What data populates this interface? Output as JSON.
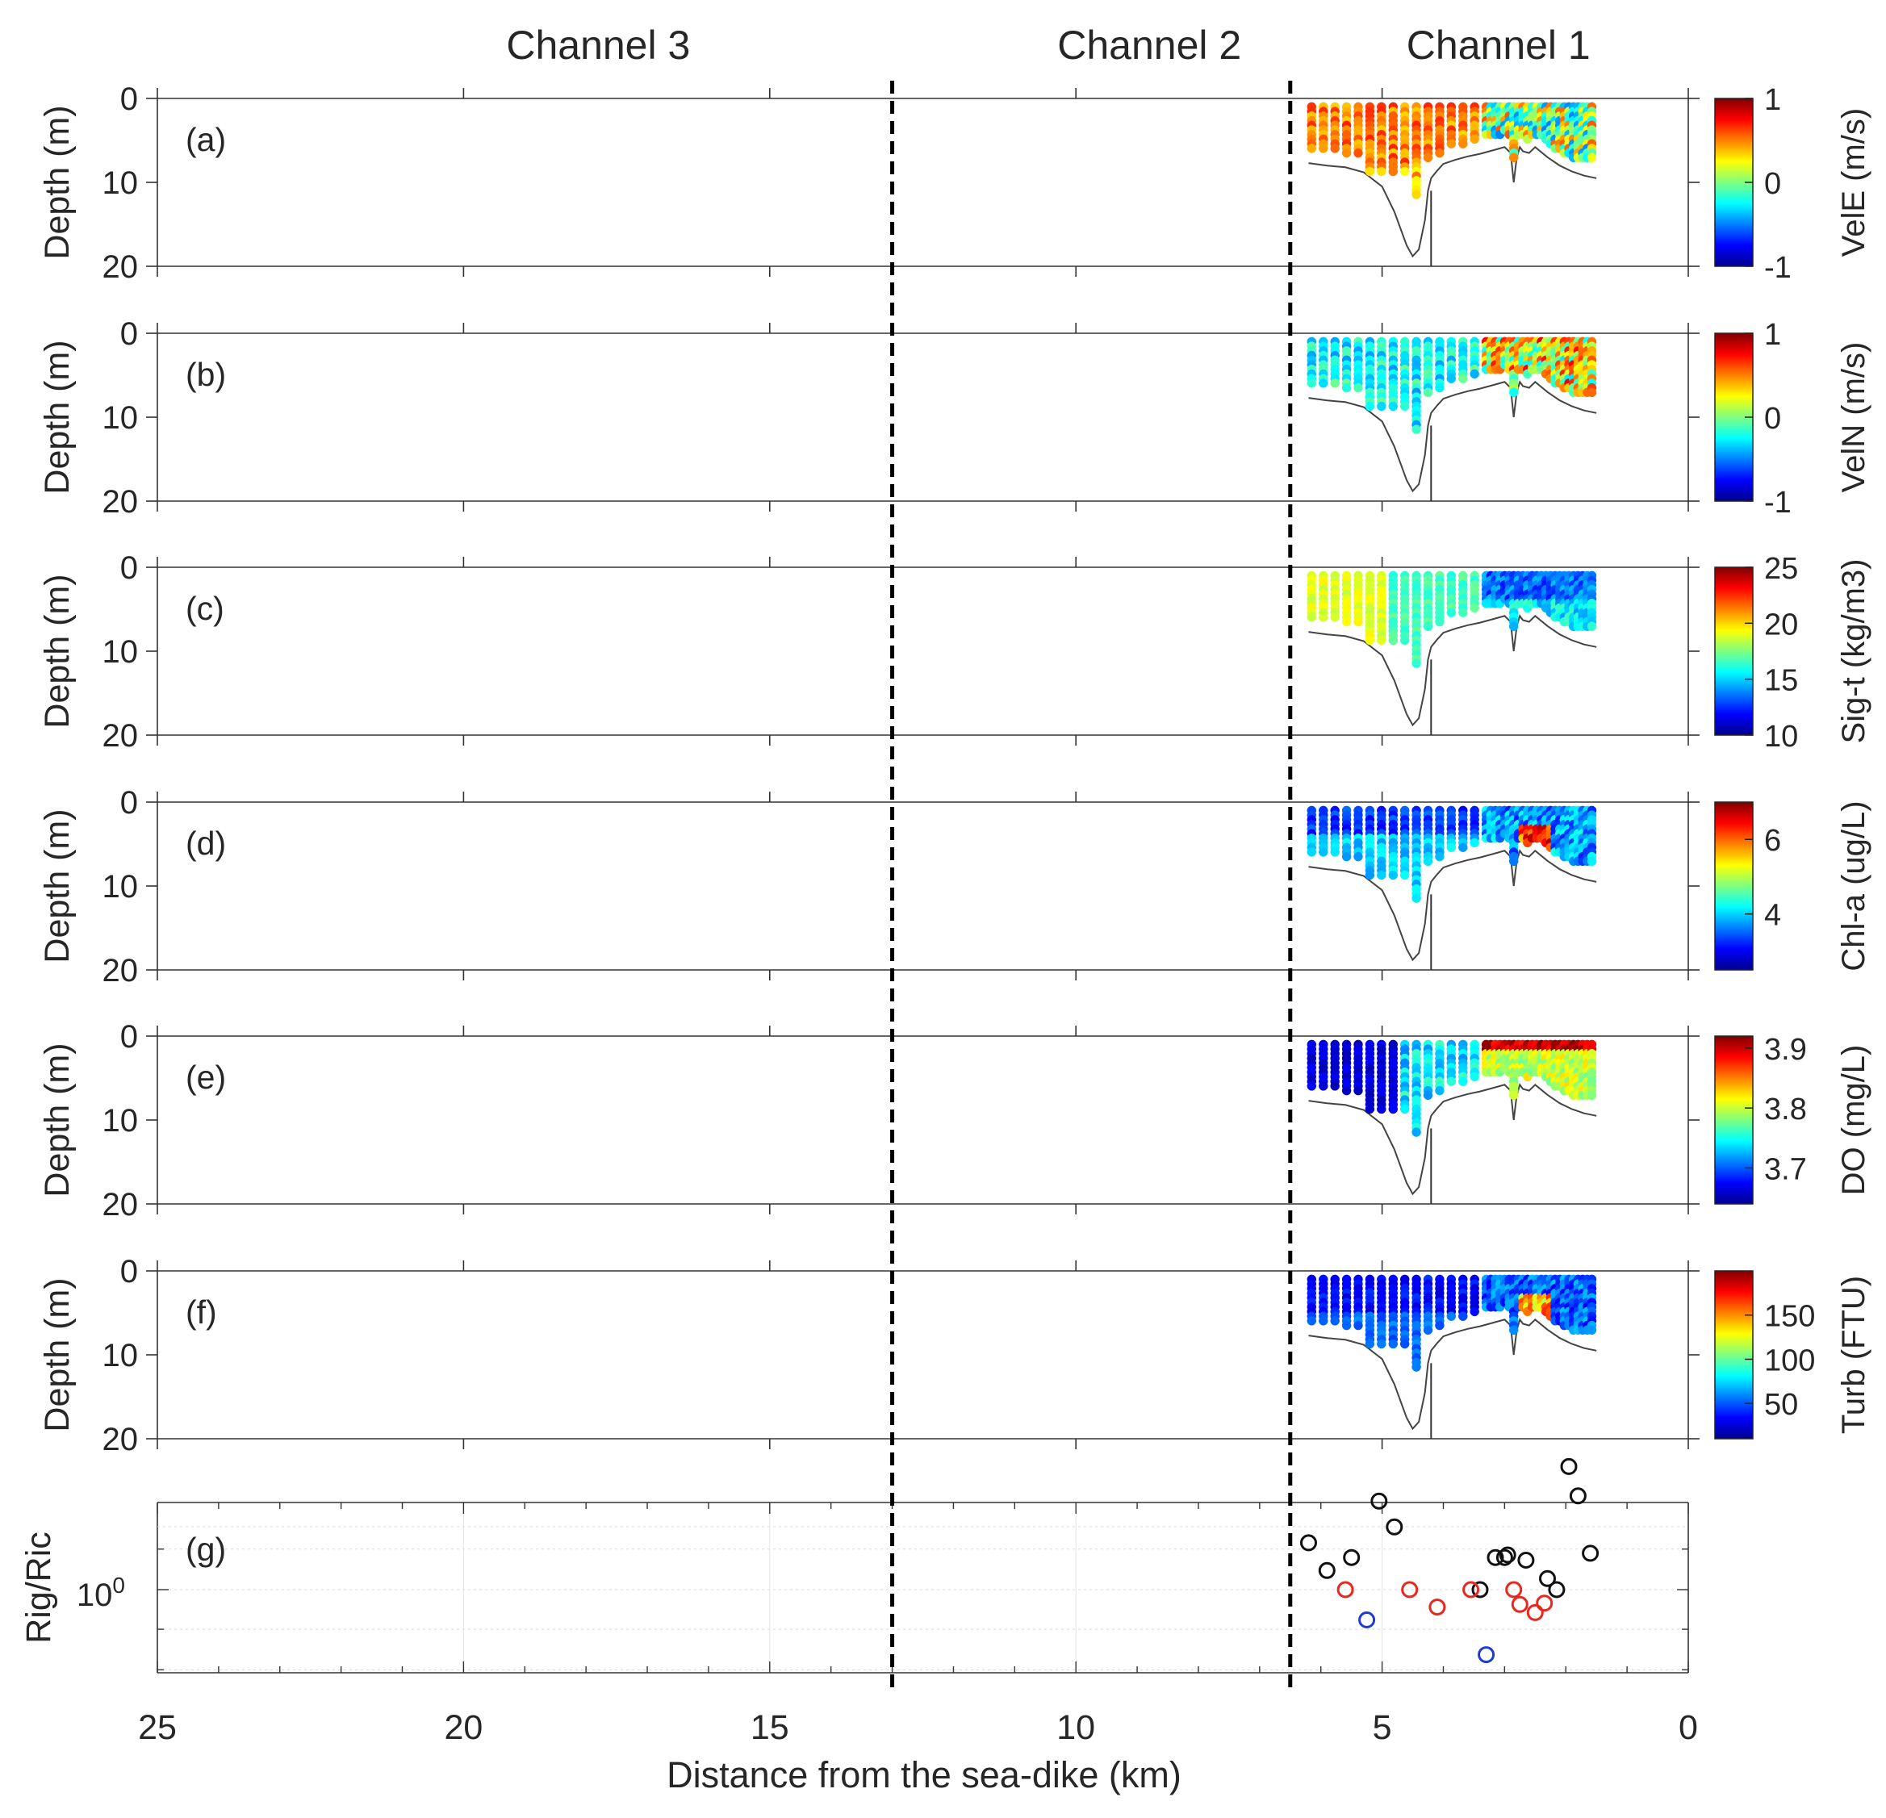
{
  "chart_data": {
    "type": "scatter",
    "title": "",
    "xlabel": "Distance from the sea-dike (km)",
    "xlim": [
      25,
      0
    ],
    "x_direction": "reversed",
    "xticks": [
      "25",
      "20",
      "15",
      "10",
      "5",
      "0"
    ],
    "channel_labels": [
      "Channel 3",
      "Channel 2",
      "Channel 1"
    ],
    "channel_boundaries_km": [
      13.0,
      6.5
    ],
    "survey_range_km": [
      6.2,
      1.5
    ],
    "panels": [
      {
        "label": "(a)",
        "ylabel": "Depth (m)",
        "ylim": [
          0,
          20
        ],
        "yticks": [
          "0",
          "10",
          "20"
        ],
        "colorbar_label": "VelE (m/s)",
        "cbar_range": [
          -1,
          1
        ],
        "cbar_ticks": [
          "1",
          "0",
          "-1"
        ]
      },
      {
        "label": "(b)",
        "ylabel": "Depth (m)",
        "ylim": [
          0,
          20
        ],
        "yticks": [
          "0",
          "10",
          "20"
        ],
        "colorbar_label": "VelN (m/s)",
        "cbar_range": [
          -1,
          1
        ],
        "cbar_ticks": [
          "1",
          "0",
          "-1"
        ]
      },
      {
        "label": "(c)",
        "ylabel": "Depth (m)",
        "ylim": [
          0,
          20
        ],
        "yticks": [
          "0",
          "10",
          "20"
        ],
        "colorbar_label": "Sig-t (kg/m3)",
        "cbar_range": [
          10,
          25
        ],
        "cbar_ticks": [
          "25",
          "20",
          "15",
          "10"
        ]
      },
      {
        "label": "(d)",
        "ylabel": "Depth (m)",
        "ylim": [
          0,
          20
        ],
        "yticks": [
          "0",
          "10",
          "20"
        ],
        "colorbar_label": "Chl-a (ug/L)",
        "cbar_range": [
          2.5,
          7
        ],
        "cbar_ticks": [
          "6",
          "4"
        ]
      },
      {
        "label": "(e)",
        "ylabel": "Depth (m)",
        "ylim": [
          0,
          20
        ],
        "yticks": [
          "0",
          "10",
          "20"
        ],
        "colorbar_label": "DO (mg/L)",
        "cbar_range": [
          3.64,
          3.92
        ],
        "cbar_ticks": [
          "3.9",
          "3.8",
          "3.7"
        ]
      },
      {
        "label": "(f)",
        "ylabel": "Depth (m)",
        "ylim": [
          0,
          20
        ],
        "yticks": [
          "0",
          "10",
          "20"
        ],
        "colorbar_label": "Turb (FTU)",
        "cbar_range": [
          10,
          200
        ],
        "cbar_ticks": [
          "150",
          "100",
          "50"
        ]
      }
    ],
    "bathymetry": {
      "x_km": [
        6.2,
        5.9,
        5.6,
        5.3,
        5.0,
        4.8,
        4.6,
        4.5,
        4.4,
        4.3,
        4.25,
        4.2,
        4.1,
        4.0,
        3.8,
        3.6,
        3.4,
        3.2,
        3.0,
        2.9,
        2.85,
        2.8,
        2.75,
        2.7,
        2.6,
        2.5,
        2.3,
        2.1,
        1.9,
        1.7,
        1.5
      ],
      "depth_m": [
        7.7,
        8.0,
        8.2,
        8.8,
        10.5,
        13.5,
        17.5,
        18.8,
        18.0,
        14.5,
        11.0,
        9.5,
        8.6,
        7.8,
        7.3,
        6.9,
        6.6,
        6.2,
        5.8,
        6.5,
        10.0,
        7.0,
        5.8,
        6.3,
        6.5,
        5.8,
        7.0,
        8.0,
        8.7,
        9.2,
        9.5
      ]
    },
    "rig_ric_panel": {
      "label": "(g)",
      "ylabel": "Rig/Ric",
      "yscale": "log",
      "ytick_label": "10^0",
      "series": [
        {
          "name": "black",
          "color": "#111111",
          "x": [
            6.2,
            5.9,
            5.5,
            5.05,
            4.8,
            3.4,
            3.15,
            3.0,
            2.95,
            2.65,
            2.3,
            2.15,
            1.95,
            1.8,
            1.6
          ],
          "y": [
            1.5,
            1.18,
            1.32,
            2.15,
            1.72,
            1.0,
            1.32,
            1.32,
            1.35,
            1.29,
            1.1,
            1.0,
            2.9,
            2.25,
            1.37
          ]
        },
        {
          "name": "red",
          "color": "#e8281e",
          "x": [
            5.6,
            4.55,
            4.1,
            3.55,
            2.85,
            2.75,
            2.5,
            2.35
          ],
          "y": [
            1.0,
            1.0,
            0.86,
            1.0,
            1.0,
            0.88,
            0.82,
            0.89
          ]
        },
        {
          "name": "blue",
          "color": "#1f3bd6",
          "x": [
            5.25,
            3.3
          ],
          "y": [
            0.77,
            0.57
          ]
        }
      ]
    }
  }
}
